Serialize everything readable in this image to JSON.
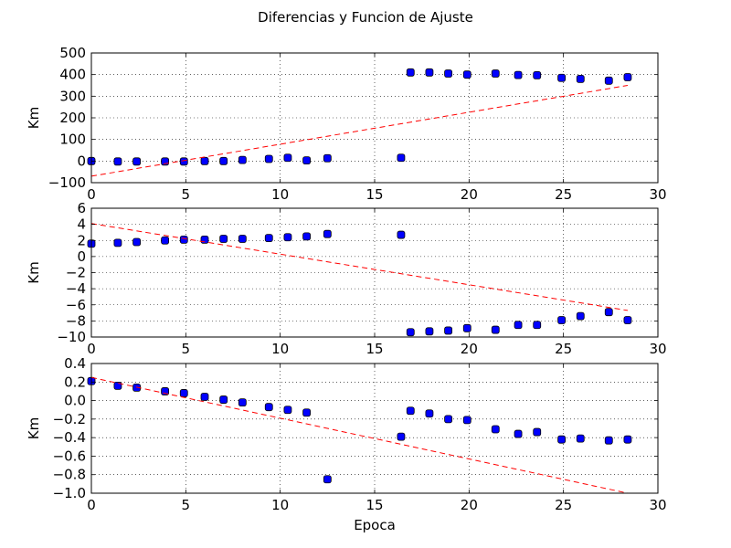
{
  "figure": {
    "title": "Diferencias y Funcion de Ajuste"
  },
  "chart_data": [
    {
      "type": "scatter",
      "title": "Diferencias y Funcion de Ajuste",
      "xlabel": "",
      "ylabel": "Km",
      "xlim": [
        0,
        30
      ],
      "ylim": [
        -100,
        500
      ],
      "xticks": [
        0,
        5,
        10,
        15,
        20,
        25,
        30
      ],
      "yticks": [
        -100,
        0,
        100,
        200,
        300,
        400,
        500
      ],
      "grid": true,
      "series": [
        {
          "style": "markers",
          "color": "#0000ff",
          "x": [
            0,
            1.4,
            2.4,
            3.9,
            4.9,
            6.0,
            7.0,
            8.0,
            9.4,
            10.4,
            11.4,
            12.5,
            16.4,
            16.9,
            17.9,
            18.9,
            19.9,
            21.4,
            22.6,
            23.6,
            24.9,
            25.9,
            27.4,
            28.4
          ],
          "y": [
            0,
            -2,
            -2,
            -2,
            -2,
            0,
            0,
            5,
            10,
            15,
            3,
            13,
            15,
            410,
            410,
            405,
            400,
            405,
            398,
            397,
            385,
            380,
            372,
            388
          ]
        },
        {
          "style": "dashed-line",
          "color": "#ff0000",
          "x": [
            0,
            28.4
          ],
          "y": [
            -70,
            350
          ]
        }
      ]
    },
    {
      "type": "scatter",
      "xlabel": "",
      "ylabel": "Km",
      "xlim": [
        0,
        30
      ],
      "ylim": [
        -10,
        6
      ],
      "xticks": [
        0,
        5,
        10,
        15,
        20,
        25,
        30
      ],
      "yticks": [
        -10,
        -8,
        -6,
        -4,
        -2,
        0,
        2,
        4,
        6
      ],
      "grid": true,
      "series": [
        {
          "style": "markers",
          "color": "#0000ff",
          "x": [
            0,
            1.4,
            2.4,
            3.9,
            4.9,
            6.0,
            7.0,
            8.0,
            9.4,
            10.4,
            11.4,
            12.5,
            16.4,
            16.9,
            17.9,
            18.9,
            19.9,
            21.4,
            22.6,
            23.6,
            24.9,
            25.9,
            27.4,
            28.4
          ],
          "y": [
            1.6,
            1.7,
            1.8,
            2.0,
            2.1,
            2.1,
            2.2,
            2.2,
            2.3,
            2.4,
            2.5,
            2.8,
            2.7,
            -9.4,
            -9.3,
            -9.2,
            -8.9,
            -9.1,
            -8.5,
            -8.5,
            -7.9,
            -7.4,
            -6.9,
            -7.9
          ]
        },
        {
          "style": "dashed-line",
          "color": "#ff0000",
          "x": [
            0,
            28.4
          ],
          "y": [
            4.1,
            -6.7
          ]
        }
      ]
    },
    {
      "type": "scatter",
      "xlabel": "Epoca",
      "ylabel": "Km",
      "xlim": [
        0,
        30
      ],
      "ylim": [
        -1.0,
        0.4
      ],
      "xticks": [
        0,
        5,
        10,
        15,
        20,
        25,
        30
      ],
      "yticks": [
        -1.0,
        -0.8,
        -0.6,
        -0.4,
        -0.2,
        0.0,
        0.2,
        0.4
      ],
      "ytick_labels": [
        "−1.0",
        "−0.8",
        "−0.6",
        "−0.4",
        "−0.2",
        "0.0",
        "0.2",
        "0.4"
      ],
      "grid": true,
      "series": [
        {
          "style": "markers",
          "color": "#0000ff",
          "x": [
            0,
            1.4,
            2.4,
            3.9,
            4.9,
            6.0,
            7.0,
            8.0,
            9.4,
            10.4,
            11.4,
            12.5,
            16.4,
            16.9,
            17.9,
            18.9,
            19.9,
            21.4,
            22.6,
            23.6,
            24.9,
            25.9,
            27.4,
            28.4
          ],
          "y": [
            0.21,
            0.16,
            0.14,
            0.1,
            0.08,
            0.04,
            0.01,
            -0.02,
            -0.07,
            -0.1,
            -0.13,
            -0.85,
            -0.39,
            -0.11,
            -0.14,
            -0.2,
            -0.21,
            -0.31,
            -0.36,
            -0.34,
            -0.42,
            -0.41,
            -0.43,
            -0.42
          ]
        },
        {
          "style": "dashed-line",
          "color": "#ff0000",
          "x": [
            0,
            28.4
          ],
          "y": [
            0.25,
            -1.0
          ]
        }
      ]
    }
  ]
}
